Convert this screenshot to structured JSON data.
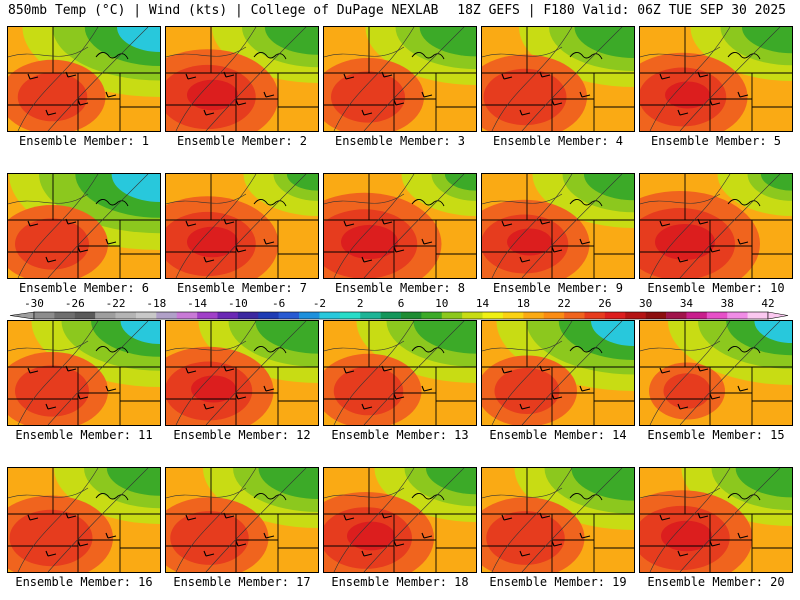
{
  "header": {
    "left": "850mb Temp (°C) | Wind (kts) | College of DuPage NEXLAB",
    "right": "18Z GEFS | F180 Valid: 06Z TUE SEP 30 2025"
  },
  "panels": [
    {
      "label": "Ensemble Member: 1",
      "heat": 0.55,
      "cool": 0.75
    },
    {
      "label": "Ensemble Member: 2",
      "heat": 0.85,
      "cool": 0.4
    },
    {
      "label": "Ensemble Member: 3",
      "heat": 0.6,
      "cool": 0.45
    },
    {
      "label": "Ensemble Member: 4",
      "heat": 0.7,
      "cool": 0.5
    },
    {
      "label": "Ensemble Member: 5",
      "heat": 0.75,
      "cool": 0.35
    },
    {
      "label": "Ensemble Member: 6",
      "heat": 0.6,
      "cool": 0.9
    },
    {
      "label": "Ensemble Member: 7",
      "heat": 0.85,
      "cool": 0.05
    },
    {
      "label": "Ensemble Member: 8",
      "heat": 0.95,
      "cool": 0.05
    },
    {
      "label": "Ensemble Member: 9",
      "heat": 0.75,
      "cool": 0.35
    },
    {
      "label": "Ensemble Member: 10",
      "heat": 1.0,
      "cool": 0.05
    },
    {
      "label": "Ensemble Member: 11",
      "heat": 0.6,
      "cool": 0.65
    },
    {
      "label": "Ensemble Member: 12",
      "heat": 0.75,
      "cool": 0.55
    },
    {
      "label": "Ensemble Member: 13",
      "heat": 0.55,
      "cool": 0.55
    },
    {
      "label": "Ensemble Member: 14",
      "heat": 0.5,
      "cool": 0.75
    },
    {
      "label": "Ensemble Member: 15",
      "heat": 0.3,
      "cool": 0.6
    },
    {
      "label": "Ensemble Member: 16",
      "heat": 0.7,
      "cool": 0.4
    },
    {
      "label": "Ensemble Member: 17",
      "heat": 0.65,
      "cool": 0.5
    },
    {
      "label": "Ensemble Member: 18",
      "heat": 0.8,
      "cool": 0.35
    },
    {
      "label": "Ensemble Member: 19",
      "heat": 0.65,
      "cool": 0.55
    },
    {
      "label": "Ensemble Member: 20",
      "heat": 0.85,
      "cool": 0.45
    }
  ],
  "colorbar": {
    "ticks": [
      "-30",
      "-26",
      "-22",
      "-18",
      "-14",
      "-10",
      "-6",
      "-2",
      "2",
      "6",
      "10",
      "14",
      "18",
      "22",
      "26",
      "30",
      "34",
      "38",
      "42"
    ],
    "colors": [
      "#8c8c8c",
      "#6e6e6e",
      "#5a5a5a",
      "#9e9e9e",
      "#b4b4b4",
      "#c8c8c8",
      "#b0a0c8",
      "#c87ad6",
      "#a040c8",
      "#6a28b4",
      "#3c28a0",
      "#1e3cb4",
      "#285ad2",
      "#1e90dc",
      "#28c8dc",
      "#28dcc8",
      "#1eb496",
      "#14965a",
      "#1e8c32",
      "#3caa28",
      "#8cc81e",
      "#c8dc14",
      "#f0f014",
      "#fad214",
      "#faaa14",
      "#fa8c14",
      "#f0641e",
      "#e63c1e",
      "#dc1e1e",
      "#b41414",
      "#8c0f0f",
      "#a0144b",
      "#c81e8c",
      "#e650c8",
      "#f08ce6",
      "#fac8f0"
    ]
  }
}
